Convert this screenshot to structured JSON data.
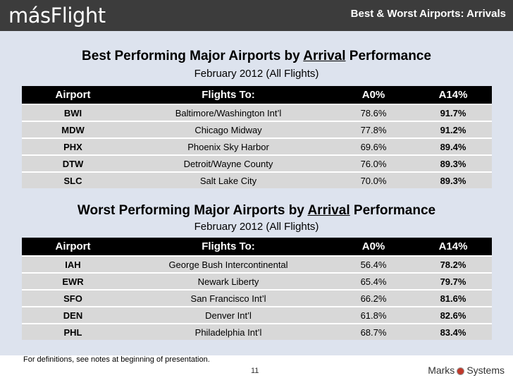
{
  "header": {
    "logo_text": "másFlight",
    "title": "Best & Worst Airports: Arrivals"
  },
  "best": {
    "title_pre": "Best Performing Major Airports by ",
    "title_emph": "Arrival",
    "title_post": " Performance",
    "subtitle": "February 2012 (All Flights)",
    "columns": [
      "Airport",
      "Flights To:",
      "A0%",
      "A14%"
    ],
    "rows": [
      {
        "code": "BWI",
        "name": "Baltimore/Washington Int’l",
        "a0": "78.6%",
        "a14": "91.7%"
      },
      {
        "code": "MDW",
        "name": "Chicago Midway",
        "a0": "77.8%",
        "a14": "91.2%"
      },
      {
        "code": "PHX",
        "name": "Phoenix Sky Harbor",
        "a0": "69.6%",
        "a14": "89.4%"
      },
      {
        "code": "DTW",
        "name": "Detroit/Wayne County",
        "a0": "76.0%",
        "a14": "89.3%"
      },
      {
        "code": "SLC",
        "name": "Salt Lake City",
        "a0": "70.0%",
        "a14": "89.3%"
      }
    ]
  },
  "worst": {
    "title_pre": "Worst Performing Major Airports by ",
    "title_emph": "Arrival",
    "title_post": " Performance",
    "subtitle": "February 2012 (All Flights)",
    "columns": [
      "Airport",
      "Flights To:",
      "A0%",
      "A14%"
    ],
    "rows": [
      {
        "code": "IAH",
        "name": "George Bush Intercontinental",
        "a0": "56.4%",
        "a14": "78.2%"
      },
      {
        "code": "EWR",
        "name": "Newark Liberty",
        "a0": "65.4%",
        "a14": "79.7%"
      },
      {
        "code": "SFO",
        "name": "San Francisco Int’l",
        "a0": "66.2%",
        "a14": "81.6%"
      },
      {
        "code": "DEN",
        "name": "Denver Int’l",
        "a0": "61.8%",
        "a14": "82.6%"
      },
      {
        "code": "PHL",
        "name": "Philadelphia Int’l",
        "a0": "68.7%",
        "a14": "83.4%"
      }
    ]
  },
  "footer": {
    "footnote": "For definitions, see notes at beginning of presentation.",
    "page_number": "11",
    "brand_left": "Marks",
    "brand_right": "Systems"
  },
  "colors": {
    "top_bar": "#3c3c3c",
    "logo_accent": "#f0a020",
    "band": "#dde3ee",
    "table_header": "#000000",
    "table_row": "#d8d8d8"
  }
}
